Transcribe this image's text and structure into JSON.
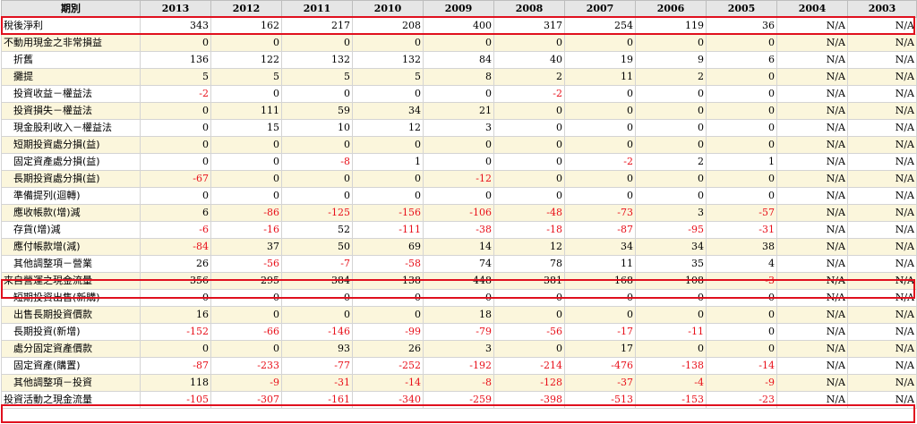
{
  "header": {
    "label": "期別",
    "years": [
      "2013",
      "2012",
      "2011",
      "2010",
      "2009",
      "2008",
      "2007",
      "2006",
      "2005",
      "2004",
      "2003"
    ]
  },
  "rows": [
    {
      "label": "稅後淨利",
      "indent": false,
      "values": [
        "343",
        "162",
        "217",
        "208",
        "400",
        "317",
        "254",
        "119",
        "36",
        "N/A",
        "N/A"
      ]
    },
    {
      "label": "不動用現金之非常損益",
      "indent": false,
      "values": [
        "0",
        "0",
        "0",
        "0",
        "0",
        "0",
        "0",
        "0",
        "0",
        "N/A",
        "N/A"
      ]
    },
    {
      "label": "折舊",
      "indent": true,
      "values": [
        "136",
        "122",
        "132",
        "132",
        "84",
        "40",
        "19",
        "9",
        "6",
        "N/A",
        "N/A"
      ]
    },
    {
      "label": "攤提",
      "indent": true,
      "values": [
        "5",
        "5",
        "5",
        "5",
        "8",
        "2",
        "11",
        "2",
        "0",
        "N/A",
        "N/A"
      ]
    },
    {
      "label": "投資收益－權益法",
      "indent": true,
      "values": [
        "-2",
        "0",
        "0",
        "0",
        "0",
        "-2",
        "0",
        "0",
        "0",
        "N/A",
        "N/A"
      ]
    },
    {
      "label": "投資損失－權益法",
      "indent": true,
      "values": [
        "0",
        "111",
        "59",
        "34",
        "21",
        "0",
        "0",
        "0",
        "0",
        "N/A",
        "N/A"
      ]
    },
    {
      "label": "現金股利收入－權益法",
      "indent": true,
      "values": [
        "0",
        "15",
        "10",
        "12",
        "3",
        "0",
        "0",
        "0",
        "0",
        "N/A",
        "N/A"
      ]
    },
    {
      "label": "短期投資處分損(益)",
      "indent": true,
      "values": [
        "0",
        "0",
        "0",
        "0",
        "0",
        "0",
        "0",
        "0",
        "0",
        "N/A",
        "N/A"
      ]
    },
    {
      "label": "固定資產處分損(益)",
      "indent": true,
      "values": [
        "0",
        "0",
        "-8",
        "1",
        "0",
        "0",
        "-2",
        "2",
        "1",
        "N/A",
        "N/A"
      ]
    },
    {
      "label": "長期投資處分損(益)",
      "indent": true,
      "values": [
        "-67",
        "0",
        "0",
        "0",
        "-12",
        "0",
        "0",
        "0",
        "0",
        "N/A",
        "N/A"
      ]
    },
    {
      "label": "準備提列(迴轉)",
      "indent": true,
      "values": [
        "0",
        "0",
        "0",
        "0",
        "0",
        "0",
        "0",
        "0",
        "0",
        "N/A",
        "N/A"
      ]
    },
    {
      "label": "應收帳款(增)減",
      "indent": true,
      "values": [
        "6",
        "-86",
        "-125",
        "-156",
        "-106",
        "-48",
        "-73",
        "3",
        "-57",
        "N/A",
        "N/A"
      ]
    },
    {
      "label": "存貨(增)減",
      "indent": true,
      "values": [
        "-6",
        "-16",
        "52",
        "-111",
        "-38",
        "-18",
        "-87",
        "-95",
        "-31",
        "N/A",
        "N/A"
      ]
    },
    {
      "label": "應付帳款增(減)",
      "indent": true,
      "values": [
        "-84",
        "37",
        "50",
        "69",
        "14",
        "12",
        "34",
        "34",
        "38",
        "N/A",
        "N/A"
      ]
    },
    {
      "label": "其他調整項－營業",
      "indent": true,
      "values": [
        "26",
        "-56",
        "-7",
        "-58",
        "74",
        "78",
        "11",
        "35",
        "4",
        "N/A",
        "N/A"
      ]
    },
    {
      "label": "來自營運之現金流量",
      "indent": false,
      "values": [
        "356",
        "295",
        "384",
        "138",
        "448",
        "381",
        "168",
        "108",
        "-3",
        "N/A",
        "N/A"
      ]
    },
    {
      "label": "短期投資出售(新購)",
      "indent": true,
      "values": [
        "0",
        "0",
        "0",
        "0",
        "0",
        "0",
        "0",
        "0",
        "0",
        "N/A",
        "N/A"
      ]
    },
    {
      "label": "出售長期投資價款",
      "indent": true,
      "values": [
        "16",
        "0",
        "0",
        "0",
        "18",
        "0",
        "0",
        "0",
        "0",
        "N/A",
        "N/A"
      ]
    },
    {
      "label": "長期投資(新增)",
      "indent": true,
      "values": [
        "-152",
        "-66",
        "-146",
        "-99",
        "-79",
        "-56",
        "-17",
        "-11",
        "0",
        "N/A",
        "N/A"
      ]
    },
    {
      "label": "處分固定資產價款",
      "indent": true,
      "values": [
        "0",
        "0",
        "93",
        "26",
        "3",
        "0",
        "17",
        "0",
        "0",
        "N/A",
        "N/A"
      ]
    },
    {
      "label": "固定資產(購置)",
      "indent": true,
      "values": [
        "-87",
        "-233",
        "-77",
        "-252",
        "-192",
        "-214",
        "-476",
        "-138",
        "-14",
        "N/A",
        "N/A"
      ]
    },
    {
      "label": "其他調整項－投資",
      "indent": true,
      "values": [
        "118",
        "-9",
        "-31",
        "-14",
        "-8",
        "-128",
        "-37",
        "-4",
        "-9",
        "N/A",
        "N/A"
      ]
    },
    {
      "label": "投資活動之現金流量",
      "indent": false,
      "values": [
        "-105",
        "-307",
        "-161",
        "-340",
        "-259",
        "-398",
        "-513",
        "-153",
        "-23",
        "N/A",
        "N/A"
      ]
    }
  ],
  "highlight_color": "#e0101e"
}
